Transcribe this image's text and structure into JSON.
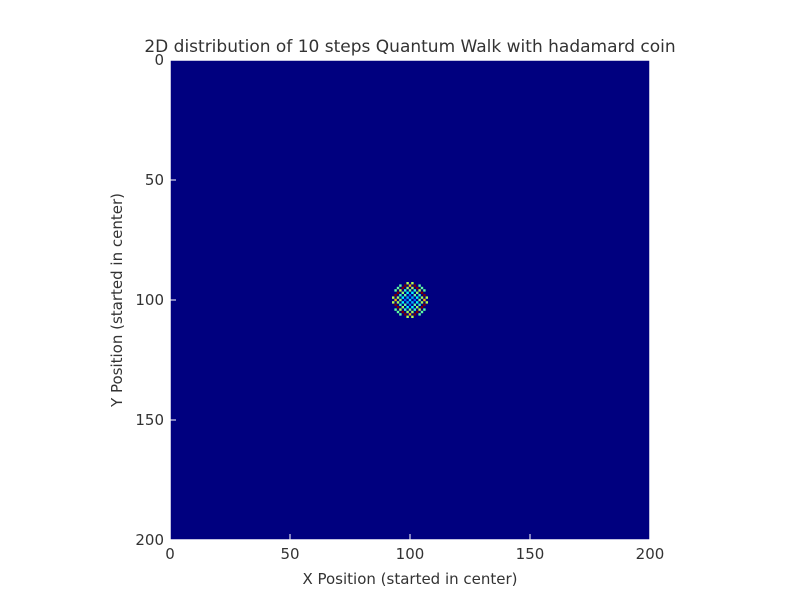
{
  "chart_data": {
    "type": "heatmap",
    "title": "2D distribution of 10 steps Quantum Walk with hadamard coin",
    "xlabel": "X Position (started in center)",
    "ylabel": "Y Position (started in center)",
    "xlim": [
      0,
      200
    ],
    "ylim": [
      200,
      0
    ],
    "xticks": [
      0,
      50,
      100,
      150,
      200
    ],
    "yticks": [
      0,
      50,
      100,
      150,
      200
    ],
    "grid": false,
    "colormap": "jet",
    "background_value": 0,
    "center": [
      100,
      100
    ],
    "steps": 10,
    "spot_radius": 7.5
  },
  "colors": {
    "background_cell": "#00007f",
    "frame": "#ffffff",
    "tick": "#ffffff"
  }
}
